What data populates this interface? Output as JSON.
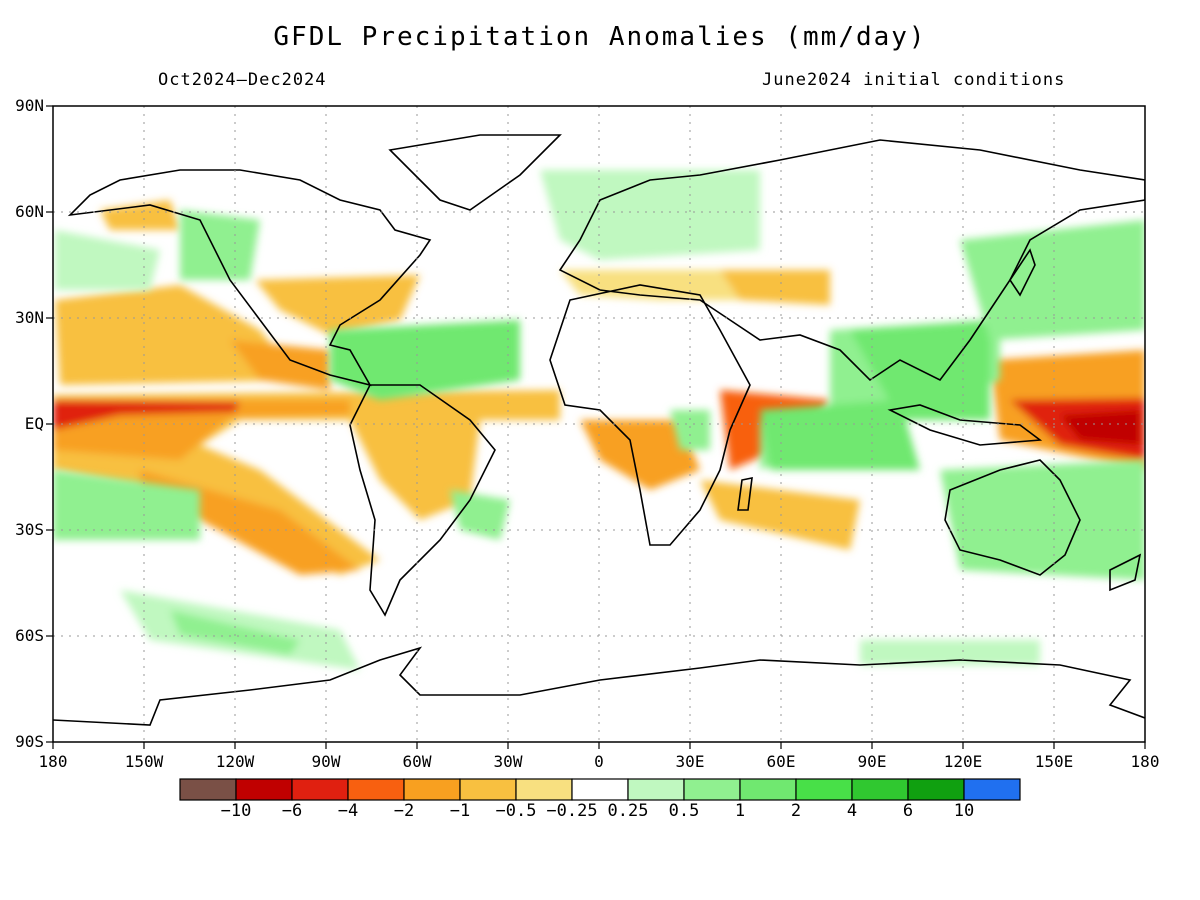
{
  "header": {
    "title": "GFDL Precipitation Anomalies (mm/day)",
    "period": "Oct2024–Dec2024",
    "init": "June2024 initial conditions"
  },
  "axes": {
    "lat_labels": [
      "90N",
      "60N",
      "30N",
      "EQ",
      "30S",
      "60S",
      "90S"
    ],
    "lon_labels": [
      "180",
      "150W",
      "120W",
      "90W",
      "60W",
      "30W",
      "0",
      "30E",
      "60E",
      "90E",
      "120E",
      "150E",
      "180"
    ]
  },
  "colorbar": {
    "labels": [
      "−10",
      "−6",
      "−4",
      "−2",
      "−1",
      "−0.5",
      "−0.25",
      "0.25",
      "0.5",
      "1",
      "2",
      "4",
      "6",
      "10"
    ],
    "colors": [
      "#7a5046",
      "#c00000",
      "#e02010",
      "#f86010",
      "#f8a020",
      "#f8c040",
      "#f8e080",
      "#ffffff",
      "#c0f8c0",
      "#90f090",
      "#70e870",
      "#48e048",
      "#30c830",
      "#10a010",
      "#2070f0"
    ]
  },
  "chart_data": {
    "type": "heatmap",
    "title": "GFDL Precipitation Anomalies (mm/day)",
    "period": "Oct2024–Dec2024",
    "initial_conditions": "June2024 initial conditions",
    "lon_range": [
      -180,
      180
    ],
    "lat_range": [
      -90,
      90
    ],
    "grid": true,
    "fields": [
      {
        "name": "eq-pacific-east-dry",
        "lon": [
          -180,
          -118
        ],
        "lat": [
          3,
          9
        ],
        "value": -4
      },
      {
        "name": "eq-pacific-dry-band",
        "lon": [
          -180,
          -50
        ],
        "lat": [
          -10,
          10
        ],
        "value": -1
      },
      {
        "name": "south-pacific-dry-diag",
        "lon": [
          -150,
          -90
        ],
        "lat": [
          -35,
          -15
        ],
        "value": -1
      },
      {
        "name": "north-pacific-dry",
        "lon": [
          -180,
          -110
        ],
        "lat": [
          25,
          45
        ],
        "value": -0.5
      },
      {
        "name": "west-pacific-dry-core",
        "lon": [
          150,
          180
        ],
        "lat": [
          -5,
          5
        ],
        "value": -6
      },
      {
        "name": "west-pacific-dry",
        "lon": [
          130,
          180
        ],
        "lat": [
          -10,
          20
        ],
        "value": -2
      },
      {
        "name": "indian-ocean-west-dry",
        "lon": [
          40,
          70
        ],
        "lat": [
          -5,
          10
        ],
        "value": -2
      },
      {
        "name": "atlantic-itcz-dry",
        "lon": [
          -40,
          -10
        ],
        "lat": [
          3,
          10
        ],
        "value": -1
      },
      {
        "name": "maritime-continent-wet",
        "lon": [
          70,
          140
        ],
        "lat": [
          -15,
          25
        ],
        "value": 2
      },
      {
        "name": "caribbean-wet",
        "lon": [
          -90,
          -50
        ],
        "lat": [
          10,
          25
        ],
        "value": 1
      },
      {
        "name": "australia-wet",
        "lon": [
          115,
          155
        ],
        "lat": [
          -40,
          -15
        ],
        "value": 1
      },
      {
        "name": "southern-ocean-wet",
        "lon": [
          -150,
          -80
        ],
        "lat": [
          -70,
          -45
        ],
        "value": 0.5
      }
    ],
    "colorbar_levels": [
      -10,
      -6,
      -4,
      -2,
      -1,
      -0.5,
      -0.25,
      0.25,
      0.5,
      1,
      2,
      4,
      6,
      10
    ]
  }
}
